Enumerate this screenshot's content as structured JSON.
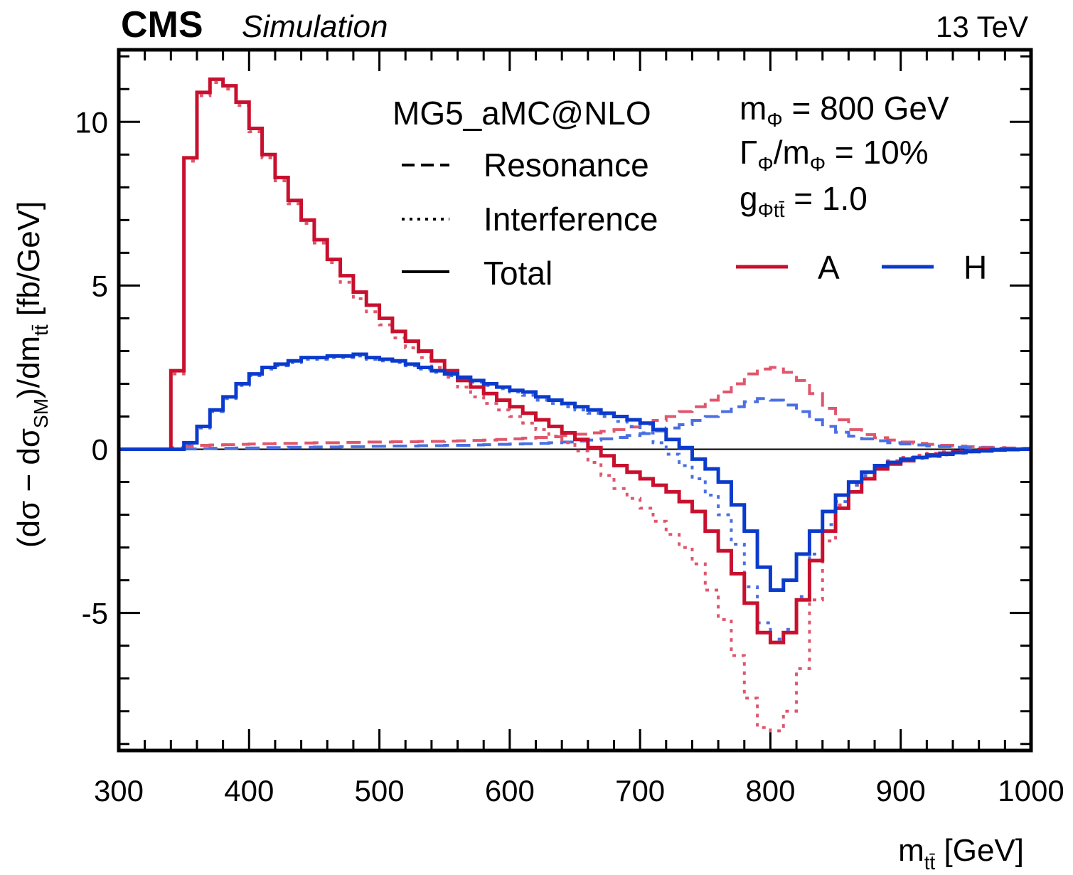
{
  "header": {
    "experiment": "CMS",
    "label": "Simulation",
    "energy": "13 TeV"
  },
  "legend": {
    "generator": "MG5_aMC@NLO",
    "styles": [
      {
        "name": "Resonance",
        "dash": "dashed"
      },
      {
        "name": "Interference",
        "dash": "dotted"
      },
      {
        "name": "Total",
        "dash": "solid"
      }
    ],
    "params": {
      "mass": {
        "symbol": "m",
        "sub": "Φ",
        "rest": " = 800 GeV"
      },
      "width": {
        "symbol": "Γ",
        "sub": "Φ",
        "mid": "/m",
        "sub2": "Φ",
        "rest": " = 10%"
      },
      "coupling": {
        "symbol": "g",
        "sub": "Φtt̄",
        "rest": " = 1.0"
      }
    },
    "models": [
      {
        "name": "A",
        "color": "#c8102e"
      },
      {
        "name": "H",
        "color": "#0b3bcc"
      }
    ]
  },
  "chart_data": {
    "type": "line",
    "drawstyle": "steps",
    "title": "",
    "xlabel": {
      "main": "m",
      "sub": "tt̄",
      "rest": " [GeV]"
    },
    "ylabel": {
      "a": "(dσ − dσ",
      "sub1": "SM",
      "b": ")/dm",
      "sub2": "tt̄",
      "c": "  [fb/GeV]"
    },
    "xlim": [
      300,
      1000
    ],
    "ylim": [
      -9.2,
      12.2
    ],
    "xticks": [
      300,
      400,
      500,
      600,
      700,
      800,
      900,
      1000
    ],
    "xtick_labels": [
      "300",
      "400",
      "500",
      "600",
      "700",
      "800",
      "900",
      "1000"
    ],
    "yticks": [
      -5,
      0,
      5,
      10
    ],
    "ytick_labels": [
      "-5",
      "0",
      "5",
      "10"
    ],
    "bin_edges": [
      300,
      310,
      320,
      330,
      340,
      350,
      360,
      370,
      380,
      390,
      400,
      410,
      420,
      430,
      440,
      450,
      460,
      470,
      480,
      490,
      500,
      510,
      520,
      530,
      540,
      550,
      560,
      570,
      580,
      590,
      600,
      610,
      620,
      630,
      640,
      650,
      660,
      670,
      680,
      690,
      700,
      710,
      720,
      730,
      740,
      750,
      760,
      770,
      780,
      790,
      800,
      810,
      820,
      830,
      840,
      850,
      860,
      870,
      880,
      890,
      900,
      910,
      920,
      930,
      940,
      950,
      960,
      970,
      980,
      990,
      1000
    ],
    "series": [
      {
        "name": "A Total",
        "model": "A",
        "component": "Total",
        "color": "#c8102e",
        "values": [
          0,
          0,
          0,
          0,
          2.4,
          8.9,
          10.9,
          11.3,
          11.1,
          10.6,
          9.8,
          9.0,
          8.3,
          7.6,
          7.0,
          6.4,
          5.8,
          5.3,
          4.8,
          4.4,
          4.0,
          3.6,
          3.3,
          3.0,
          2.7,
          2.4,
          2.1,
          1.9,
          1.7,
          1.5,
          1.3,
          1.1,
          0.9,
          0.7,
          0.5,
          0.3,
          0.05,
          -0.2,
          -0.5,
          -0.7,
          -0.9,
          -1.1,
          -1.3,
          -1.6,
          -1.9,
          -2.5,
          -3.1,
          -3.8,
          -4.7,
          -5.6,
          -5.9,
          -5.6,
          -4.6,
          -3.4,
          -2.5,
          -1.8,
          -1.3,
          -0.9,
          -0.6,
          -0.45,
          -0.35,
          -0.25,
          -0.17,
          -0.12,
          -0.08,
          -0.05,
          -0.02,
          -0.01,
          0,
          0
        ]
      },
      {
        "name": "A Interference",
        "model": "A",
        "component": "Interference",
        "color": "#e0566c",
        "values": [
          0,
          0,
          0,
          0,
          2.3,
          8.8,
          10.8,
          11.2,
          11.0,
          10.5,
          9.7,
          8.9,
          8.2,
          7.5,
          6.9,
          6.3,
          5.7,
          5.1,
          4.6,
          4.2,
          3.8,
          3.4,
          3.1,
          2.8,
          2.5,
          2.2,
          1.9,
          1.6,
          1.4,
          1.2,
          1.0,
          0.8,
          0.6,
          0.4,
          0.2,
          -0.05,
          -0.4,
          -0.8,
          -1.2,
          -1.5,
          -1.8,
          -2.2,
          -2.6,
          -3.0,
          -3.5,
          -4.3,
          -5.2,
          -6.3,
          -7.6,
          -8.5,
          -8.6,
          -8.0,
          -6.7,
          -4.6,
          -2.8,
          -1.7,
          -1.1,
          -0.7,
          -0.5,
          -0.35,
          -0.25,
          -0.18,
          -0.12,
          -0.08,
          -0.05,
          -0.03,
          -0.02,
          -0.01,
          0,
          0
        ]
      },
      {
        "name": "A Resonance",
        "model": "A",
        "component": "Resonance",
        "color": "#e0566c",
        "values": [
          0,
          0,
          0,
          0,
          0.05,
          0.1,
          0.12,
          0.13,
          0.14,
          0.15,
          0.16,
          0.17,
          0.18,
          0.18,
          0.19,
          0.2,
          0.2,
          0.21,
          0.21,
          0.22,
          0.22,
          0.23,
          0.23,
          0.24,
          0.24,
          0.25,
          0.26,
          0.27,
          0.28,
          0.3,
          0.32,
          0.34,
          0.36,
          0.38,
          0.42,
          0.46,
          0.5,
          0.55,
          0.6,
          0.68,
          0.76,
          0.88,
          1.0,
          1.15,
          1.3,
          1.5,
          1.75,
          2.0,
          2.3,
          2.45,
          2.5,
          2.35,
          2.1,
          1.7,
          1.25,
          0.9,
          0.6,
          0.45,
          0.35,
          0.28,
          0.22,
          0.18,
          0.15,
          0.12,
          0.1,
          0.08,
          0.06,
          0.05,
          0.04,
          0.03
        ]
      },
      {
        "name": "H Total",
        "model": "H",
        "component": "Total",
        "color": "#0b3bcc",
        "values": [
          0,
          0,
          0,
          0,
          0,
          0.2,
          0.7,
          1.2,
          1.6,
          2.0,
          2.3,
          2.5,
          2.6,
          2.7,
          2.8,
          2.8,
          2.85,
          2.85,
          2.9,
          2.8,
          2.75,
          2.7,
          2.6,
          2.5,
          2.4,
          2.3,
          2.2,
          2.1,
          2.0,
          1.9,
          1.8,
          1.75,
          1.6,
          1.5,
          1.4,
          1.3,
          1.2,
          1.1,
          1.0,
          0.9,
          0.8,
          0.6,
          0.3,
          0.05,
          -0.3,
          -0.6,
          -1.0,
          -1.7,
          -2.5,
          -3.6,
          -4.3,
          -4.0,
          -3.2,
          -2.5,
          -1.9,
          -1.4,
          -1.0,
          -0.7,
          -0.5,
          -0.4,
          -0.3,
          -0.25,
          -0.2,
          -0.15,
          -0.1,
          -0.07,
          -0.05,
          -0.02,
          -0.01,
          0
        ]
      },
      {
        "name": "H Interference",
        "model": "H",
        "component": "Interference",
        "color": "#4a6fe3",
        "values": [
          0,
          0,
          0,
          0,
          0,
          0.15,
          0.65,
          1.15,
          1.55,
          1.95,
          2.25,
          2.45,
          2.55,
          2.65,
          2.75,
          2.75,
          2.8,
          2.8,
          2.85,
          2.75,
          2.7,
          2.65,
          2.55,
          2.45,
          2.35,
          2.25,
          2.15,
          2.05,
          1.95,
          1.85,
          1.75,
          1.65,
          1.5,
          1.4,
          1.3,
          1.2,
          1.1,
          1.0,
          0.85,
          0.7,
          0.5,
          0.2,
          -0.15,
          -0.5,
          -0.9,
          -1.4,
          -2.0,
          -2.9,
          -4.2,
          -5.3,
          -5.8,
          -5.5,
          -4.5,
          -3.2,
          -2.3,
          -1.6,
          -1.1,
          -0.8,
          -0.6,
          -0.45,
          -0.35,
          -0.28,
          -0.22,
          -0.17,
          -0.12,
          -0.08,
          -0.05,
          -0.03,
          -0.01,
          0
        ]
      },
      {
        "name": "H Resonance",
        "model": "H",
        "component": "Resonance",
        "color": "#4a6fe3",
        "values": [
          0,
          0,
          0,
          0,
          0,
          0.01,
          0.02,
          0.03,
          0.03,
          0.04,
          0.04,
          0.05,
          0.05,
          0.06,
          0.06,
          0.07,
          0.07,
          0.08,
          0.08,
          0.09,
          0.09,
          0.1,
          0.1,
          0.11,
          0.11,
          0.12,
          0.12,
          0.13,
          0.14,
          0.15,
          0.16,
          0.17,
          0.18,
          0.2,
          0.22,
          0.25,
          0.28,
          0.32,
          0.36,
          0.42,
          0.48,
          0.56,
          0.65,
          0.75,
          0.88,
          1.0,
          1.15,
          1.3,
          1.45,
          1.55,
          1.5,
          1.35,
          1.15,
          0.9,
          0.7,
          0.52,
          0.4,
          0.32,
          0.26,
          0.2,
          0.16,
          0.13,
          0.1,
          0.08,
          0.06,
          0.05,
          0.04,
          0.03,
          0.02,
          0.02
        ]
      }
    ]
  }
}
